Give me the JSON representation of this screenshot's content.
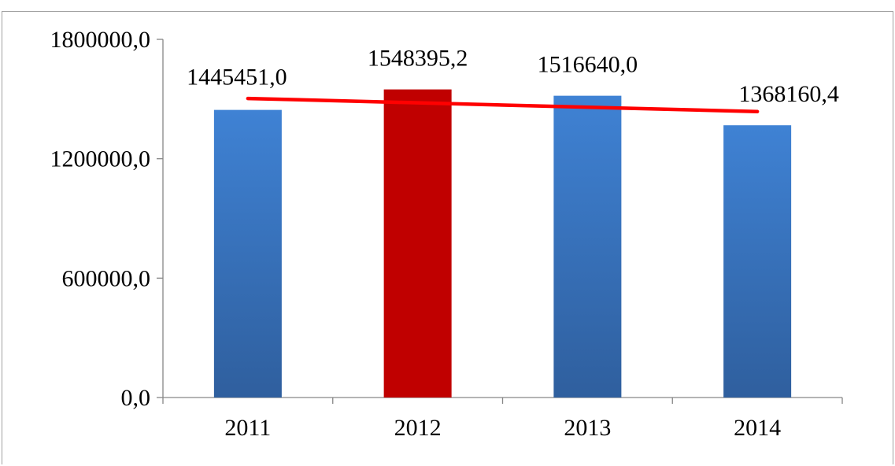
{
  "chart_data": {
    "type": "bar",
    "title": "",
    "xlabel": "",
    "ylabel": "",
    "categories": [
      "2011",
      "2012",
      "2013",
      "2014"
    ],
    "series": [
      {
        "values": [
          1445451.0,
          1548395.2,
          1516640.0,
          1368160.4
        ],
        "value_labels": [
          "1445451,0",
          "1548395,2",
          "1516640,0",
          "1368160,4"
        ],
        "colors": [
          "#3a78c3",
          "#c00000",
          "#3a78c3",
          "#3a78c3"
        ]
      }
    ],
    "trendline": {
      "type": "linear",
      "color": "#ff0000",
      "start": 1503000,
      "end": 1437000
    },
    "ylim": [
      0,
      1800000
    ],
    "yticks": [
      0,
      600000,
      1200000,
      1800000
    ],
    "ytick_labels": [
      "0,0",
      "600000,0",
      "1200000,0",
      "1800000,0"
    ],
    "grid": false,
    "legend": "none"
  },
  "colors": {
    "bar_default": "#3a78c3",
    "bar_highlight": "#c00000",
    "trendline": "#ff0000",
    "axis": "#868686"
  }
}
